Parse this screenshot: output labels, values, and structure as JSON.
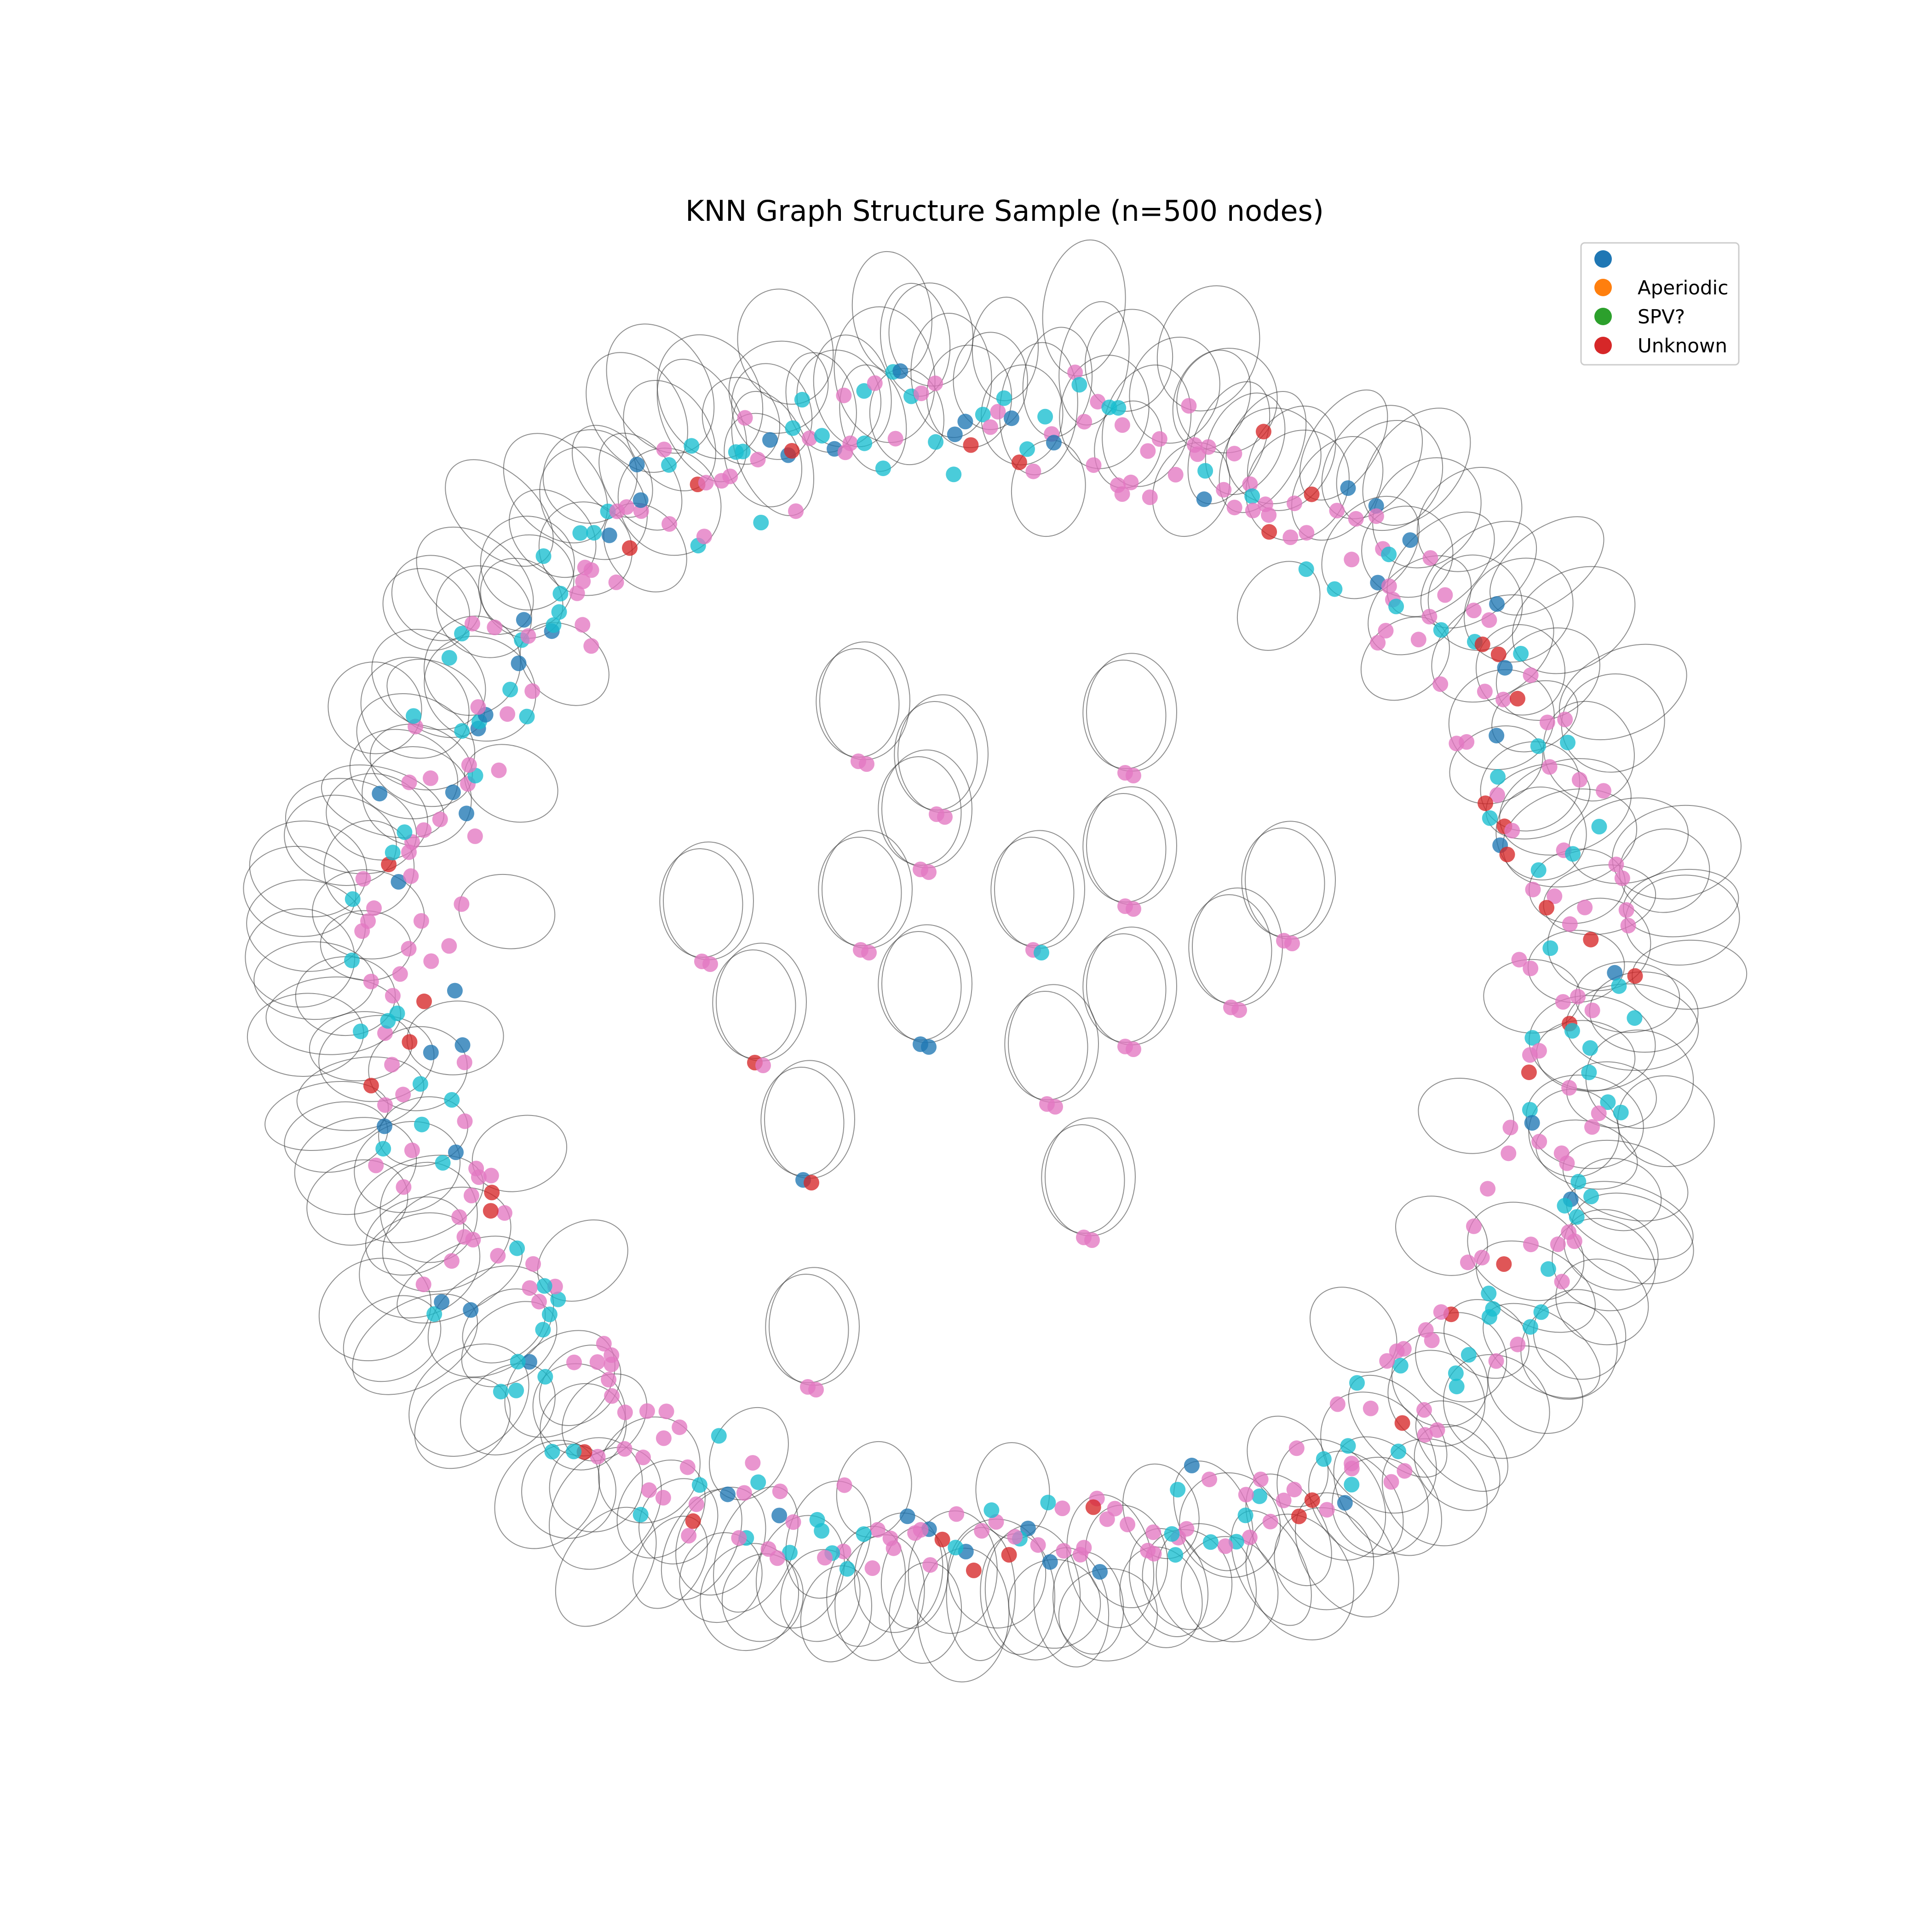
{
  "title": "KNN Graph Structure Sample (n=500 nodes)",
  "legend": [
    {
      "label": "",
      "color": "#1f77b4"
    },
    {
      "label": "Aperiodic",
      "color": "#ff7f0e"
    },
    {
      "label": "SPV?",
      "color": "#2ca02c"
    },
    {
      "label": "Unknown",
      "color": "#d62728"
    }
  ],
  "node_colors": {
    "blue": "#1f77b4",
    "red": "#d62728",
    "pink": "#e377c2",
    "cyan": "#17becf"
  },
  "edge_color": "#333333",
  "chart_data": {
    "type": "network",
    "node_count": 500,
    "layout": "ring with isolated node pairs in center",
    "categories": [
      "",
      "Aperiodic",
      "SPV?",
      "Unknown"
    ]
  }
}
